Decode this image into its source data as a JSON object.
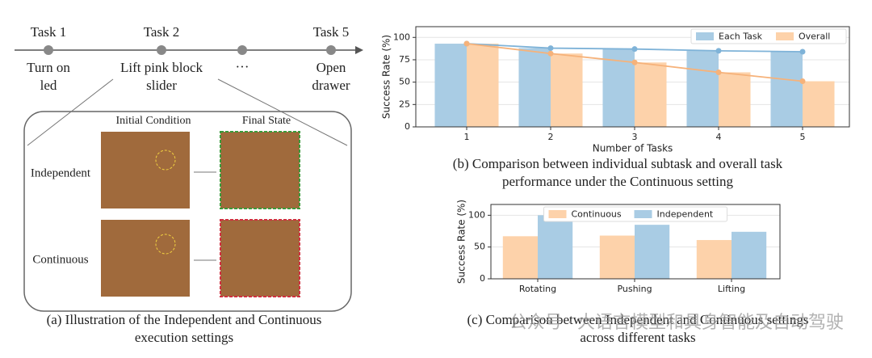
{
  "diagram": {
    "tasks": [
      {
        "name": "Task 1",
        "label": [
          "Turn on",
          "led"
        ]
      },
      {
        "name": "Task 2",
        "label": [
          "Lift pink block",
          "slider"
        ]
      },
      {
        "name": "Task 5",
        "label": [
          "Open",
          "drawer"
        ]
      }
    ],
    "ellipsis": "···",
    "column_headers": [
      "Initial Condition",
      "Final State"
    ],
    "row_labels": [
      "Independent",
      "Continuous"
    ],
    "caption": [
      "(a) Illustration of the Independent and Continuous",
      "execution settings"
    ]
  },
  "watermark": "公众号 · 大语言模型和具身智能及自动驾驶",
  "chart_data": [
    {
      "type": "bar",
      "categories": [
        "1",
        "2",
        "3",
        "4",
        "5"
      ],
      "series": [
        {
          "name": "Each Task",
          "color": "#a9cce4",
          "line_color": "#7fb3d8",
          "values": [
            93,
            88,
            87,
            85,
            84
          ]
        },
        {
          "name": "Overall",
          "color": "#fdd2aa",
          "line_color": "#f6b27a",
          "values": [
            93,
            82,
            72,
            61,
            51
          ]
        }
      ],
      "line_overlay": true,
      "ylim": [
        0,
        112
      ],
      "yticks": [
        0,
        25,
        50,
        75,
        100
      ],
      "grid": true,
      "legend": "upper right",
      "xlabel": "Number of Tasks",
      "ylabel": "Success Rate (%)",
      "caption": [
        "(b) Comparison between individual subtask and overall task",
        "performance under the Continuous setting"
      ]
    },
    {
      "type": "bar",
      "categories": [
        "Rotating",
        "Pushing",
        "Lifting"
      ],
      "series": [
        {
          "name": "Continuous",
          "color": "#fdd2aa",
          "values": [
            67,
            68,
            61
          ]
        },
        {
          "name": "Independent",
          "color": "#a9cce4",
          "values": [
            100,
            85,
            74
          ]
        }
      ],
      "line_overlay": false,
      "ylim": [
        0,
        117
      ],
      "yticks": [
        0,
        50,
        100
      ],
      "grid": true,
      "legend": "upper center",
      "ylabel": "Success Rate (%)",
      "caption": [
        "(c) Comparison between Independent and Continuous settings",
        "across different tasks"
      ]
    }
  ]
}
